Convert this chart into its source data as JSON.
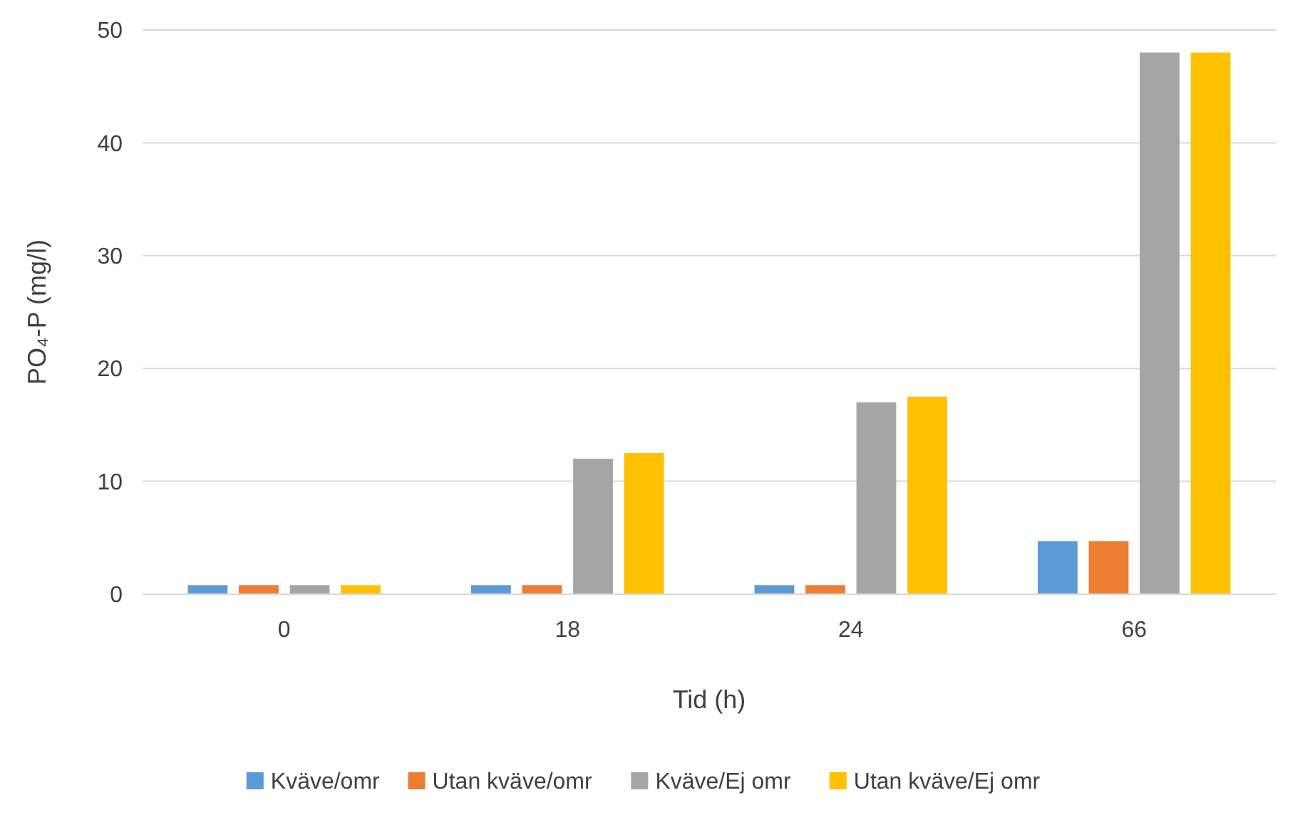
{
  "chart_data": {
    "type": "bar",
    "xlabel": "Tid (h)",
    "ylabel": "PO₄-P (mg/l)",
    "categories": [
      "0",
      "18",
      "24",
      "66"
    ],
    "series": [
      {
        "name": "Kväve/omr",
        "color": "#5b9bd5",
        "values": [
          0.8,
          0.8,
          0.8,
          4.7
        ]
      },
      {
        "name": "Utan kväve/omr",
        "color": "#ed7d31",
        "values": [
          0.8,
          0.8,
          0.8,
          4.7
        ]
      },
      {
        "name": "Kväve/Ej omr",
        "color": "#a5a5a5",
        "values": [
          0.8,
          12,
          17,
          48
        ]
      },
      {
        "name": "Utan kväve/Ej omr",
        "color": "#ffc000",
        "values": [
          0.8,
          12.5,
          17.5,
          48
        ]
      }
    ],
    "ylim": [
      0,
      50
    ],
    "yticks": [
      0,
      10,
      20,
      30,
      40,
      50
    ],
    "grid": "y",
    "legend": "bottom"
  }
}
